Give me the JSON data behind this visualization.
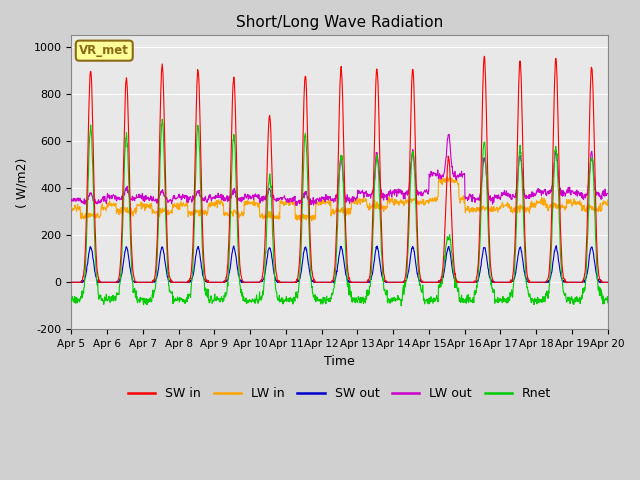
{
  "title": "Short/Long Wave Radiation",
  "xlabel": "Time",
  "ylabel": "( W/m2)",
  "ylim": [
    -200,
    1050
  ],
  "yticks": [
    -200,
    0,
    200,
    400,
    600,
    800,
    1000
  ],
  "annotation_text": "VR_met",
  "annotation_bg": "#ffff99",
  "annotation_border": "#8b6914",
  "line_colors": {
    "SW_in": "#ff0000",
    "LW_in": "#ffa500",
    "SW_out": "#0000cd",
    "LW_out": "#cc00cc",
    "Rnet": "#00cc00"
  },
  "legend_labels": [
    "SW in",
    "LW in",
    "SW out",
    "LW out",
    "Rnet"
  ],
  "legend_colors": [
    "#ff0000",
    "#ffa500",
    "#0000cd",
    "#cc00cc",
    "#00cc00"
  ],
  "x_tick_labels": [
    "Apr 5",
    "Apr 6",
    "Apr 7",
    "Apr 8",
    "Apr 9",
    "Apr 10",
    "Apr 11",
    "Apr 12",
    "Apr 13",
    "Apr 14",
    "Apr 15",
    "Apr 16",
    "Apr 17",
    "Apr 18",
    "Apr 19",
    "Apr 20"
  ],
  "n_days": 15,
  "n_points_per_day": 96,
  "seed": 42
}
